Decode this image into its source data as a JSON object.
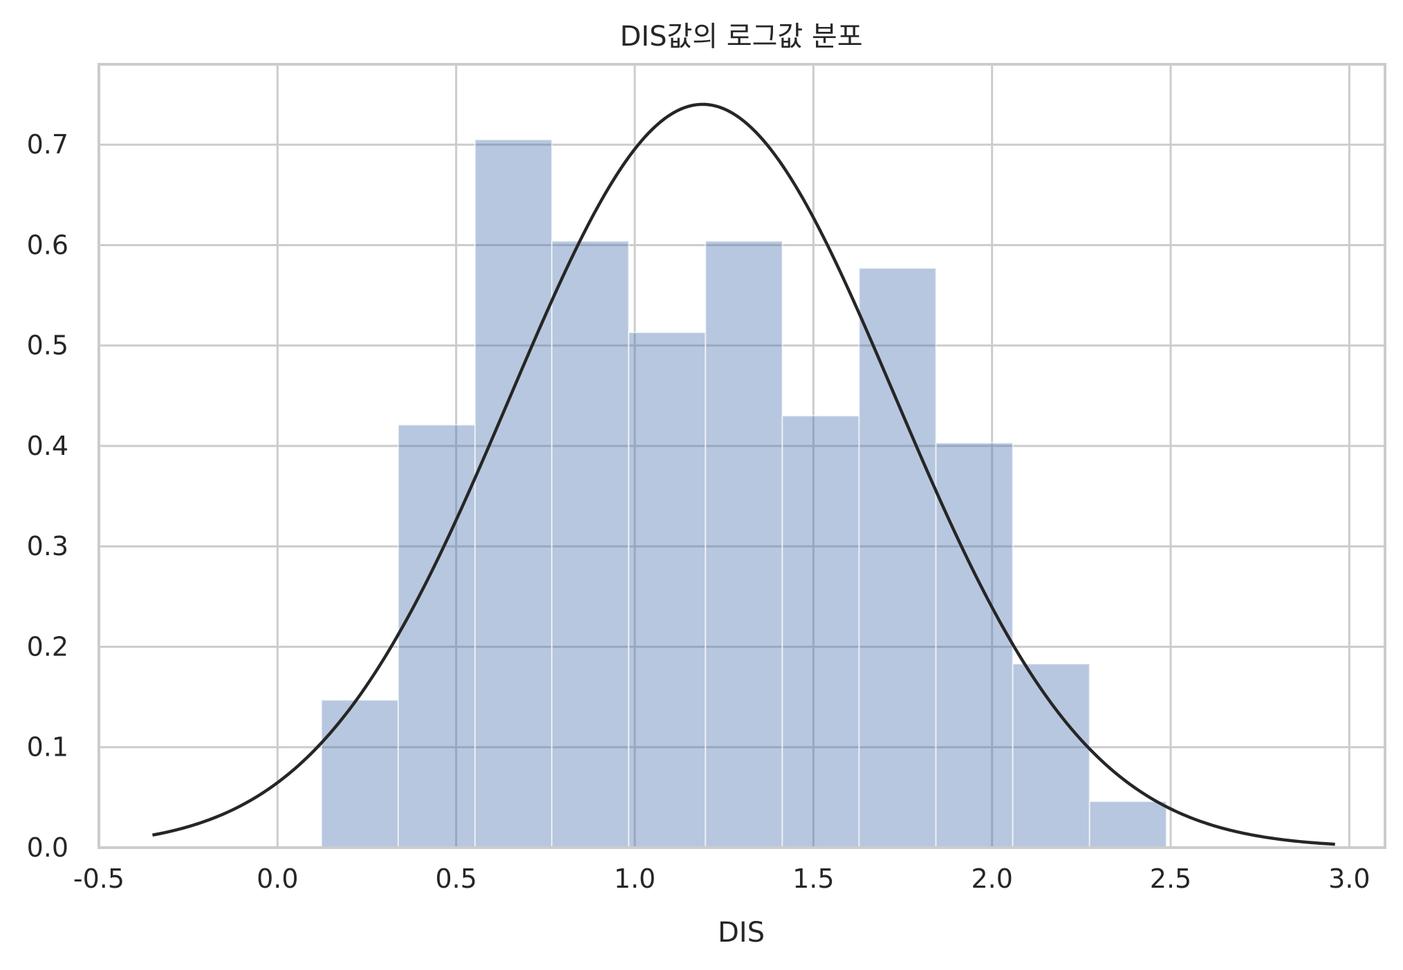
{
  "chart_data": {
    "type": "bar",
    "title": "DIS값의 로그값 분포",
    "xlabel": "DIS",
    "ylabel": "",
    "xlim": [
      -0.5,
      3.1
    ],
    "ylim": [
      0.0,
      0.78
    ],
    "grid": true,
    "legend": "none",
    "x_ticks": [
      "-0.5",
      "0.0",
      "0.5",
      "1.0",
      "1.5",
      "2.0",
      "2.5",
      "3.0"
    ],
    "x_tick_values": [
      -0.5,
      0.0,
      0.5,
      1.0,
      1.5,
      2.0,
      2.5,
      3.0
    ],
    "y_ticks": [
      "0.0",
      "0.1",
      "0.2",
      "0.3",
      "0.4",
      "0.5",
      "0.6",
      "0.7"
    ],
    "y_tick_values": [
      0.0,
      0.1,
      0.2,
      0.3,
      0.4,
      0.5,
      0.6,
      0.7
    ],
    "histogram": {
      "bin_edges": [
        0.123,
        0.338,
        0.553,
        0.768,
        0.983,
        1.198,
        1.413,
        1.628,
        1.843,
        2.058,
        2.273,
        2.488
      ],
      "values": [
        0.147,
        0.421,
        0.705,
        0.604,
        0.513,
        0.604,
        0.43,
        0.577,
        0.403,
        0.183,
        0.046
      ],
      "color": "#4c72b0",
      "alpha": 0.4
    },
    "fit_curve": {
      "type": "normal_pdf",
      "mean": 1.19,
      "std": 0.539,
      "x_range": [
        -0.35,
        2.96
      ],
      "color": "#262626"
    }
  }
}
